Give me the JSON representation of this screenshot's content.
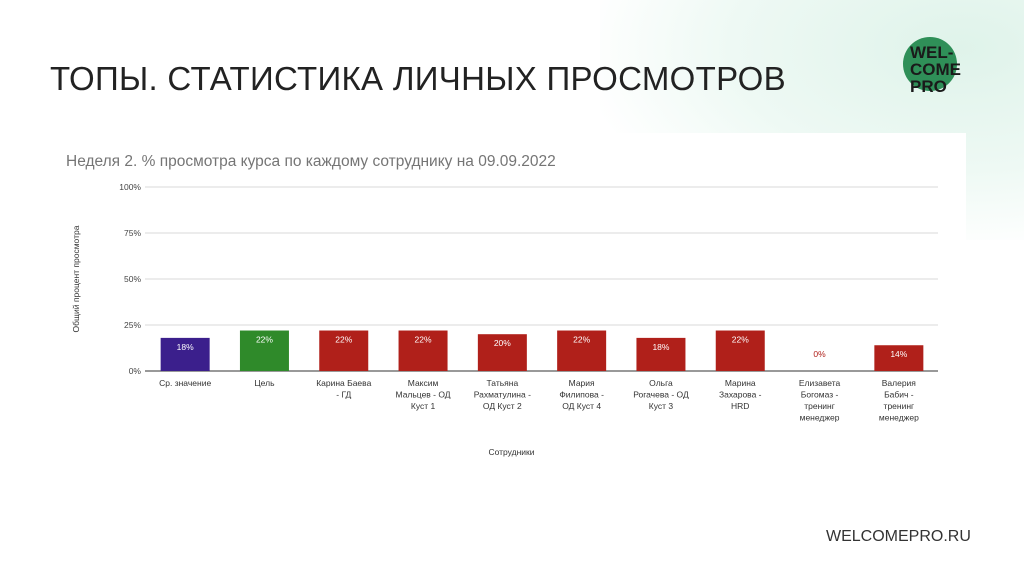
{
  "slide": {
    "title": "ТОПЫ. СТАТИСТИКА ЛИЧНЫХ ПРОСМОТРОВ",
    "logo_lines": [
      "WEL-",
      "COME",
      "PRO"
    ],
    "footer_url": "WELCOMEPRO.RU",
    "logo_color": "#2f8f58"
  },
  "chart_data": {
    "type": "bar",
    "title": "Неделя 2. % просмотра курса по каждому сотруднику на 09.09.2022",
    "xlabel": "Сотрудники",
    "ylabel": "Общий процент просмотра",
    "ylim": [
      0,
      100
    ],
    "yticks": [
      "0%",
      "25%",
      "50%",
      "75%",
      "100%"
    ],
    "grid": true,
    "legend": "none",
    "categories": [
      [
        "Ср. значение"
      ],
      [
        "Цель"
      ],
      [
        "Карина Баева",
        "- ГД"
      ],
      [
        "Максим",
        "Мальцев - ОД",
        "Куст 1"
      ],
      [
        "Татьяна",
        "Рахматулина -",
        "ОД Куст 2"
      ],
      [
        "Мария",
        "Филипова -",
        "ОД Куст 4"
      ],
      [
        "Ольга",
        "Рогачева - ОД",
        "Куст 3"
      ],
      [
        "Марина",
        "Захарова -",
        "HRD"
      ],
      [
        "Елизавета",
        "Богомаз -",
        "тренинг",
        "менеджер"
      ],
      [
        "Валерия",
        "Бабич -",
        "тренинг",
        "менеджер"
      ]
    ],
    "values": [
      18,
      22,
      22,
      22,
      20,
      22,
      18,
      22,
      0,
      14
    ],
    "labels": [
      "18%",
      "22%",
      "22%",
      "22%",
      "20%",
      "22%",
      "18%",
      "22%",
      "0%",
      "14%"
    ],
    "colors": [
      "#3b1f8c",
      "#2f8a2a",
      "#b0201a",
      "#b0201a",
      "#b0201a",
      "#b0201a",
      "#b0201a",
      "#b0201a",
      "#b0201a",
      "#b0201a"
    ],
    "label_colors": [
      "#ffffff",
      "#ffffff",
      "#ffffff",
      "#ffffff",
      "#ffffff",
      "#ffffff",
      "#ffffff",
      "#ffffff",
      "#b0201a",
      "#ffffff"
    ]
  }
}
